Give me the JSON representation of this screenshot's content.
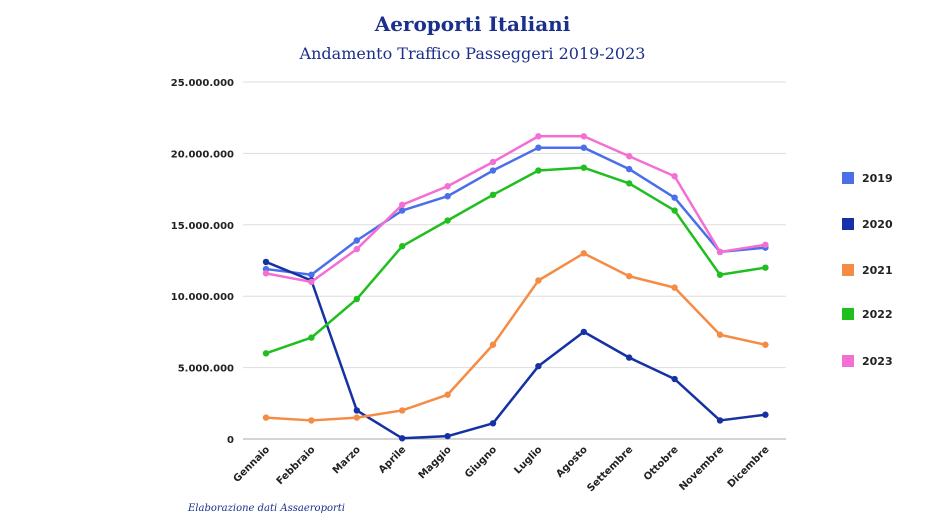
{
  "header": {
    "title": "Aeroporti Italiani",
    "subtitle": "Andamento Traffico Passeggeri 2019-2023"
  },
  "footer": {
    "source": "Elaborazione dati Assaeroporti"
  },
  "chart_data": {
    "type": "line",
    "title": "Aeroporti Italiani",
    "subtitle": "Andamento Traffico Passeggeri 2019-2023",
    "xlabel": "",
    "ylabel": "",
    "categories": [
      "Gennaio",
      "Febbraio",
      "Marzo",
      "Aprile",
      "Maggio",
      "Giugno",
      "Luglio",
      "Agosto",
      "Settembre",
      "Ottobre",
      "Novembre",
      "Dicembre"
    ],
    "ylim": [
      0,
      25000000
    ],
    "yticks": [
      "0",
      "5.000.000",
      "10.000.000",
      "15.000.000",
      "20.000.000",
      "25.000.000"
    ],
    "ytick_values": [
      0,
      5000000,
      10000000,
      15000000,
      20000000,
      25000000
    ],
    "grid": true,
    "legend_position": "right",
    "series": [
      {
        "name": "2019",
        "color": "#4a6fe8",
        "values": [
          11900000,
          11500000,
          13900000,
          16000000,
          17000000,
          18800000,
          20400000,
          20400000,
          18900000,
          16900000,
          13100000,
          13400000
        ]
      },
      {
        "name": "2020",
        "color": "#1531a3",
        "values": [
          12400000,
          11100000,
          2000000,
          50000,
          200000,
          1100000,
          5100000,
          7500000,
          5700000,
          4200000,
          1300000,
          1700000
        ]
      },
      {
        "name": "2021",
        "color": "#f58c45",
        "values": [
          1500000,
          1300000,
          1500000,
          2000000,
          3100000,
          6600000,
          11100000,
          13000000,
          11400000,
          10600000,
          7300000,
          6600000
        ]
      },
      {
        "name": "2022",
        "color": "#1fbf1f",
        "values": [
          6000000,
          7100000,
          9800000,
          13500000,
          15300000,
          17100000,
          18800000,
          19000000,
          17900000,
          16000000,
          11500000,
          12000000
        ]
      },
      {
        "name": "2023",
        "color": "#f36fd3",
        "values": [
          11600000,
          11000000,
          13300000,
          16400000,
          17700000,
          19400000,
          21200000,
          21200000,
          19800000,
          18400000,
          13100000,
          13600000
        ]
      }
    ]
  }
}
